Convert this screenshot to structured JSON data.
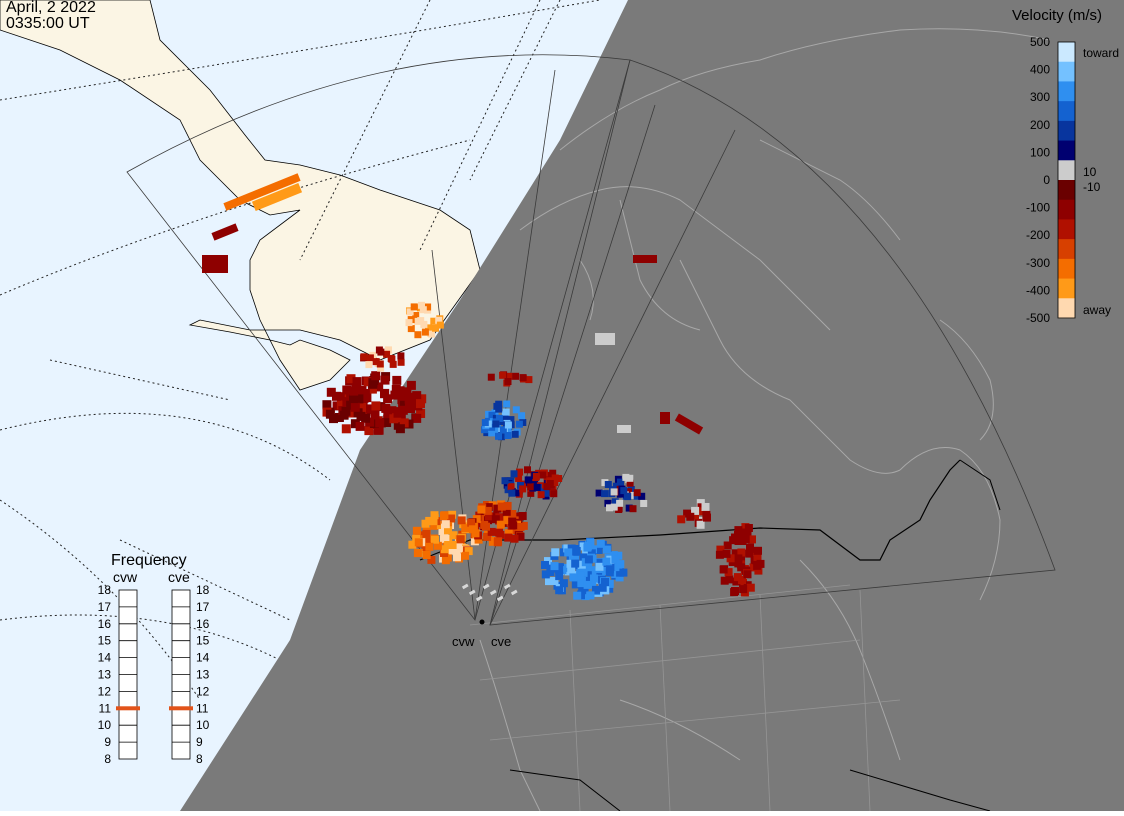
{
  "header": {
    "date": "April, 2 2022",
    "time": "0335:00 UT"
  },
  "map": {
    "ocean_color": "#e8f4ff",
    "land_color": "#fbf5e4",
    "night_color": "#7a7a7a",
    "border_color": "#b8b8b8",
    "radars": [
      {
        "id": "cvw",
        "label": "cvw"
      },
      {
        "id": "cve",
        "label": "cve"
      }
    ]
  },
  "velocity_scale": {
    "title": "Velocity (m/s)",
    "toward_label": "toward",
    "away_label": "away",
    "ticks": [
      "500",
      "400",
      "300",
      "200",
      "100",
      "0",
      "-100",
      "-200",
      "-300",
      "-400",
      "-500"
    ],
    "inner_ticks": [
      "10",
      "-10"
    ],
    "colors": [
      "#cbe9ff",
      "#74c1ff",
      "#2f8ff0",
      "#1462d0",
      "#08359e",
      "#000070",
      "#cccccc",
      "#6a0000",
      "#8e0000",
      "#b01000",
      "#d74000",
      "#f46d00",
      "#ff9a18",
      "#ffd9b0"
    ]
  },
  "frequency": {
    "title": "Frequency",
    "radars": [
      {
        "label": "cvw",
        "value": 11
      },
      {
        "label": "cve",
        "value": 11
      }
    ],
    "ticks": [
      "18",
      "17",
      "16",
      "15",
      "14",
      "13",
      "12",
      "11",
      "10",
      "9",
      "8"
    ],
    "marker_color": "#e2531a"
  }
}
